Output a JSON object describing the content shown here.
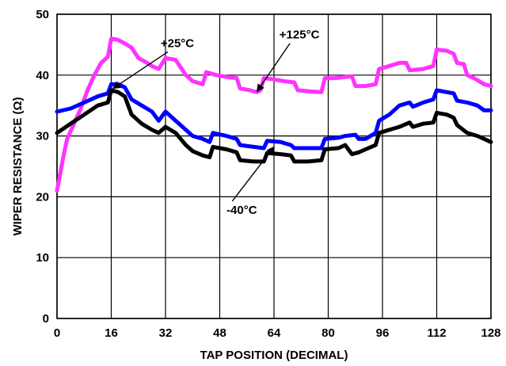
{
  "chart_data": {
    "type": "line",
    "title": "",
    "xlabel": "TAP POSITION (DECIMAL)",
    "ylabel": "WIPER RESISTANCE (Ω)",
    "xlim": [
      0,
      128
    ],
    "ylim": [
      0,
      50
    ],
    "x_ticks": [
      0,
      16,
      32,
      48,
      64,
      80,
      96,
      112,
      128
    ],
    "y_ticks": [
      0,
      10,
      20,
      30,
      40,
      50
    ],
    "grid": true,
    "legend": "none",
    "series": [
      {
        "name": "+125°C",
        "color": "#ff33ff",
        "points": [
          [
            0,
            21
          ],
          [
            1,
            24
          ],
          [
            2,
            27
          ],
          [
            3,
            29.5
          ],
          [
            5,
            32
          ],
          [
            7,
            34.5
          ],
          [
            9,
            37.5
          ],
          [
            11,
            40
          ],
          [
            13,
            42
          ],
          [
            15,
            43
          ],
          [
            16,
            46
          ],
          [
            18,
            45.8
          ],
          [
            20,
            45.2
          ],
          [
            22,
            44.5
          ],
          [
            24,
            42.8
          ],
          [
            26,
            42.2
          ],
          [
            28,
            41.5
          ],
          [
            30,
            41
          ],
          [
            32,
            42.8
          ],
          [
            35,
            42.5
          ],
          [
            38,
            40
          ],
          [
            40,
            39
          ],
          [
            43,
            38.5
          ],
          [
            44,
            40.5
          ],
          [
            47,
            40
          ],
          [
            50,
            39.7
          ],
          [
            53,
            39.5
          ],
          [
            54,
            37.8
          ],
          [
            57,
            37.5
          ],
          [
            59,
            37.2
          ],
          [
            60,
            37.5
          ],
          [
            61,
            39.5
          ],
          [
            64,
            39.3
          ],
          [
            67,
            39
          ],
          [
            70,
            38.8
          ],
          [
            71,
            37.5
          ],
          [
            75,
            37.3
          ],
          [
            78,
            37.2
          ],
          [
            79,
            39.5
          ],
          [
            82,
            39.5
          ],
          [
            85,
            39.7
          ],
          [
            87,
            39.8
          ],
          [
            88,
            38.2
          ],
          [
            91,
            38.2
          ],
          [
            94,
            38.5
          ],
          [
            95,
            41
          ],
          [
            98,
            41.5
          ],
          [
            101,
            42
          ],
          [
            103,
            42
          ],
          [
            104,
            40.8
          ],
          [
            108,
            41
          ],
          [
            111,
            41.5
          ],
          [
            112,
            44.2
          ],
          [
            115,
            44
          ],
          [
            117,
            43.5
          ],
          [
            118,
            42
          ],
          [
            120,
            41.8
          ],
          [
            121,
            40
          ],
          [
            123,
            39.5
          ],
          [
            126,
            38.5
          ],
          [
            128,
            38.2
          ]
        ]
      },
      {
        "name": "+25°C",
        "color": "#0000ff",
        "points": [
          [
            0,
            34
          ],
          [
            4,
            34.5
          ],
          [
            8,
            35.5
          ],
          [
            12,
            36.5
          ],
          [
            15,
            37
          ],
          [
            16,
            38.5
          ],
          [
            18,
            38.5
          ],
          [
            20,
            38
          ],
          [
            22,
            36
          ],
          [
            25,
            35
          ],
          [
            28,
            34
          ],
          [
            30,
            32.5
          ],
          [
            32,
            34
          ],
          [
            35,
            32.5
          ],
          [
            38,
            31
          ],
          [
            40,
            30
          ],
          [
            43,
            29.5
          ],
          [
            45,
            29
          ],
          [
            46,
            30.5
          ],
          [
            50,
            30
          ],
          [
            53,
            29.5
          ],
          [
            54,
            28.5
          ],
          [
            58,
            28.2
          ],
          [
            61,
            28
          ],
          [
            62,
            29.2
          ],
          [
            66,
            29
          ],
          [
            69,
            28.5
          ],
          [
            70,
            28
          ],
          [
            74,
            28
          ],
          [
            78,
            28
          ],
          [
            79,
            29.5
          ],
          [
            83,
            29.7
          ],
          [
            85,
            30
          ],
          [
            88,
            30.2
          ],
          [
            89,
            29.5
          ],
          [
            91,
            29.5
          ],
          [
            94,
            30.5
          ],
          [
            95,
            32.5
          ],
          [
            98,
            33.5
          ],
          [
            101,
            35
          ],
          [
            104,
            35.5
          ],
          [
            105,
            34.8
          ],
          [
            108,
            35.5
          ],
          [
            111,
            36
          ],
          [
            112,
            37.5
          ],
          [
            115,
            37.2
          ],
          [
            117,
            37
          ],
          [
            118,
            35.8
          ],
          [
            121,
            35.5
          ],
          [
            124,
            35
          ],
          [
            126,
            34.2
          ],
          [
            128,
            34.2
          ]
        ]
      },
      {
        "name": "-40°C",
        "color": "#000000",
        "points": [
          [
            0,
            30.5
          ],
          [
            4,
            32
          ],
          [
            8,
            33.5
          ],
          [
            12,
            35
          ],
          [
            15,
            35.5
          ],
          [
            16,
            37.5
          ],
          [
            18,
            37.2
          ],
          [
            20,
            36.5
          ],
          [
            22,
            33.5
          ],
          [
            25,
            32
          ],
          [
            28,
            31
          ],
          [
            30,
            30.5
          ],
          [
            32,
            31.5
          ],
          [
            35,
            30.5
          ],
          [
            38,
            28.5
          ],
          [
            40,
            27.5
          ],
          [
            43,
            26.8
          ],
          [
            45,
            26.5
          ],
          [
            46,
            28.2
          ],
          [
            50,
            27.8
          ],
          [
            53,
            27.3
          ],
          [
            54,
            26
          ],
          [
            58,
            25.8
          ],
          [
            61,
            25.8
          ],
          [
            62,
            27.2
          ],
          [
            66,
            27
          ],
          [
            69,
            26.8
          ],
          [
            70,
            25.8
          ],
          [
            74,
            25.8
          ],
          [
            78,
            26
          ],
          [
            79,
            27.8
          ],
          [
            83,
            28
          ],
          [
            85,
            28.5
          ],
          [
            87,
            27
          ],
          [
            89,
            27.3
          ],
          [
            91,
            27.8
          ],
          [
            94,
            28.5
          ],
          [
            95,
            30.5
          ],
          [
            98,
            31
          ],
          [
            101,
            31.5
          ],
          [
            104,
            32.2
          ],
          [
            105,
            31.5
          ],
          [
            108,
            32
          ],
          [
            111,
            32.2
          ],
          [
            112,
            33.8
          ],
          [
            115,
            33.5
          ],
          [
            117,
            33
          ],
          [
            118,
            31.8
          ],
          [
            121,
            30.5
          ],
          [
            124,
            30
          ],
          [
            126,
            29.5
          ],
          [
            128,
            29
          ]
        ]
      }
    ],
    "annotations": [
      {
        "text": "+25°C",
        "label_at": [
          35.5,
          44.6
        ],
        "arrow_to": [
          16.5,
          37.8
        ]
      },
      {
        "text": "+125°C",
        "label_at": [
          71.5,
          46
        ],
        "arrow_to": [
          59,
          37.3
        ]
      },
      {
        "text": "-40°C",
        "label_at": [
          54.5,
          17.2
        ],
        "arrow_to": [
          64,
          28.2
        ]
      }
    ]
  }
}
